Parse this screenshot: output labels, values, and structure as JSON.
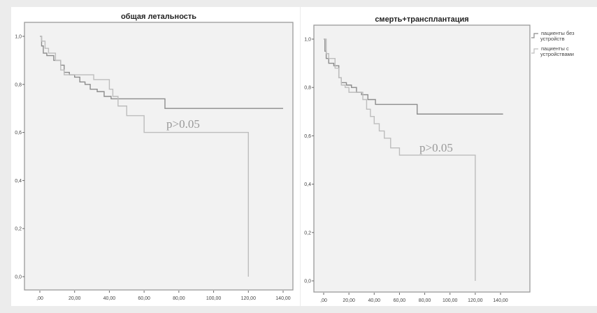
{
  "chart_data": [
    {
      "type": "line",
      "subtype": "kaplan-meier step",
      "title": "общая летальность",
      "xlim": [
        0,
        140
      ],
      "ylim": [
        0,
        1
      ],
      "x_ticks": [
        ",00",
        "20,00",
        "40,00",
        "60,00",
        "80,00",
        "100,00",
        "120,00",
        "140,00"
      ],
      "y_ticks": [
        "0,0",
        "0,2",
        "0,4",
        "0,6",
        "0,8",
        "1,0"
      ],
      "annotation": "p>0.05",
      "grid": false,
      "series": [
        {
          "name": "пациенты без устройств",
          "color": "#8c8c8c",
          "points": [
            [
              0,
              1.0
            ],
            [
              1,
              0.96
            ],
            [
              2,
              0.93
            ],
            [
              4,
              0.92
            ],
            [
              8,
              0.9
            ],
            [
              12,
              0.88
            ],
            [
              14,
              0.85
            ],
            [
              17,
              0.84
            ],
            [
              20,
              0.83
            ],
            [
              23,
              0.81
            ],
            [
              26,
              0.8
            ],
            [
              29,
              0.78
            ],
            [
              33,
              0.77
            ],
            [
              37,
              0.75
            ],
            [
              41,
              0.74
            ],
            [
              72,
              0.7
            ],
            [
              140,
              0.7
            ]
          ]
        },
        {
          "name": "пациенты с устройствами",
          "color": "#bdbdbd",
          "points": [
            [
              0,
              1.0
            ],
            [
              1,
              0.98
            ],
            [
              3,
              0.95
            ],
            [
              5,
              0.93
            ],
            [
              9,
              0.9
            ],
            [
              12,
              0.86
            ],
            [
              14,
              0.84
            ],
            [
              31,
              0.82
            ],
            [
              40,
              0.78
            ],
            [
              42,
              0.75
            ],
            [
              45,
              0.71
            ],
            [
              50,
              0.67
            ],
            [
              60,
              0.6
            ],
            [
              120,
              0.6
            ],
            [
              120,
              0.0
            ]
          ]
        }
      ]
    },
    {
      "type": "line",
      "subtype": "kaplan-meier step",
      "title": "смерть+трансплантация",
      "xlim": [
        0,
        140
      ],
      "ylim": [
        0,
        1
      ],
      "x_ticks": [
        ",00",
        "20,00",
        "40,00",
        "60,00",
        "80,00",
        "100,00",
        "120,00",
        "140,00"
      ],
      "y_ticks": [
        "0,0",
        "0,2",
        "0,4",
        "0,6",
        "0,8",
        "1,0"
      ],
      "annotation": "p>0.05",
      "grid": false,
      "legend": "right",
      "series": [
        {
          "name": "пациенты без устройств",
          "color": "#8c8c8c",
          "points": [
            [
              0,
              1.0
            ],
            [
              1,
              0.95
            ],
            [
              2,
              0.92
            ],
            [
              4,
              0.9
            ],
            [
              8,
              0.89
            ],
            [
              12,
              0.84
            ],
            [
              14,
              0.82
            ],
            [
              18,
              0.81
            ],
            [
              22,
              0.8
            ],
            [
              26,
              0.78
            ],
            [
              30,
              0.77
            ],
            [
              35,
              0.75
            ],
            [
              41,
              0.73
            ],
            [
              74,
              0.69
            ],
            [
              142,
              0.69
            ]
          ]
        },
        {
          "name": "пациенты с устройствами",
          "color": "#bdbdbd",
          "points": [
            [
              0,
              1.0
            ],
            [
              2,
              0.94
            ],
            [
              4,
              0.92
            ],
            [
              9,
              0.88
            ],
            [
              12,
              0.84
            ],
            [
              14,
              0.81
            ],
            [
              17,
              0.8
            ],
            [
              20,
              0.78
            ],
            [
              31,
              0.75
            ],
            [
              34,
              0.71
            ],
            [
              37,
              0.68
            ],
            [
              40,
              0.65
            ],
            [
              44,
              0.62
            ],
            [
              48,
              0.59
            ],
            [
              53,
              0.55
            ],
            [
              60,
              0.52
            ],
            [
              120,
              0.52
            ],
            [
              120,
              0.0
            ]
          ]
        }
      ]
    }
  ]
}
